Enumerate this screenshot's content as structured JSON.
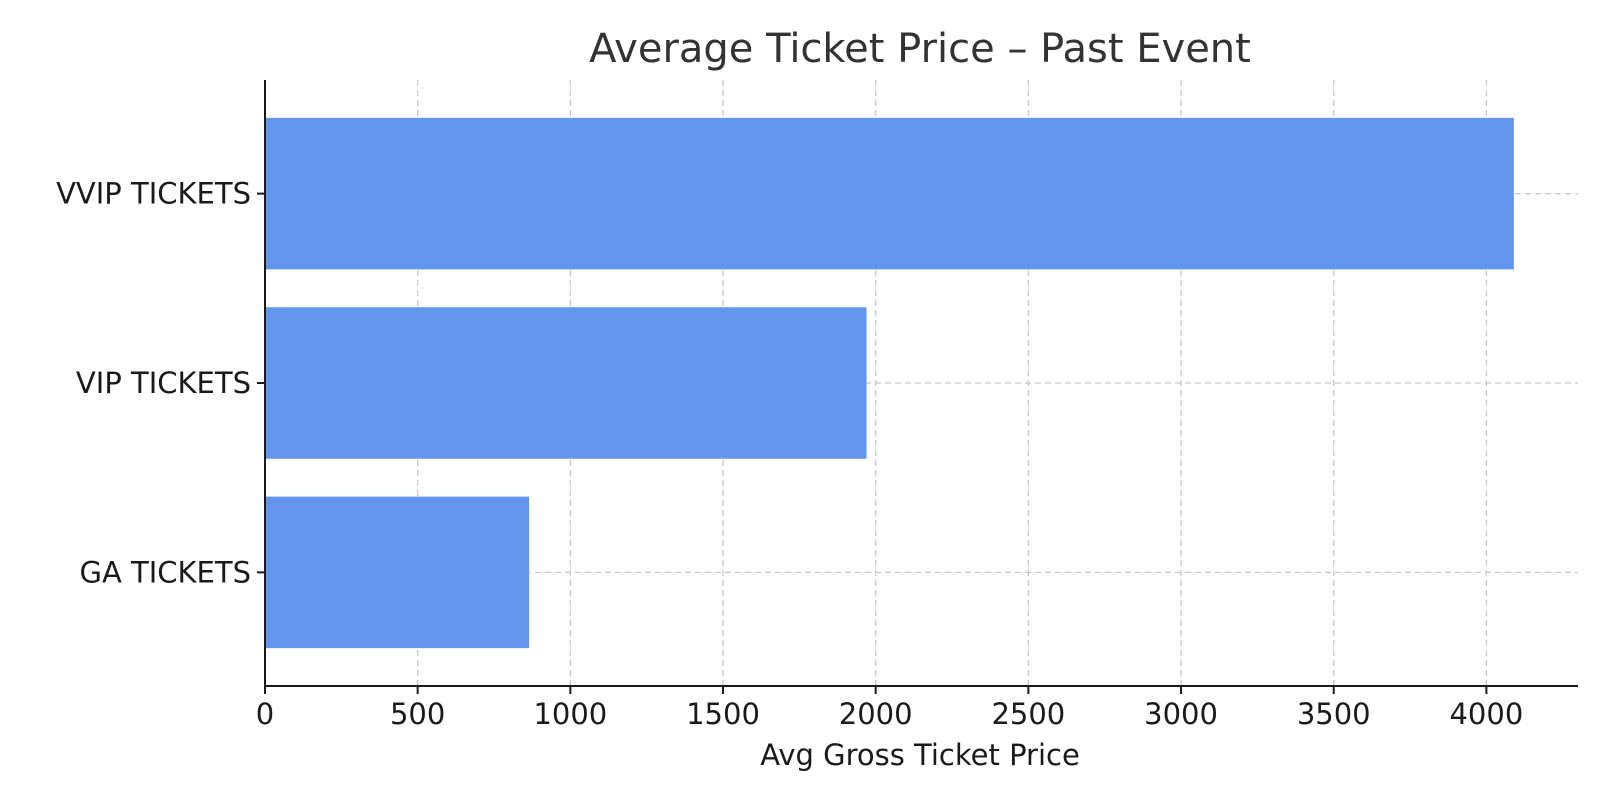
{
  "chart_data": {
    "type": "bar",
    "orientation": "horizontal",
    "title": "Average Ticket Price – Past Event",
    "xlabel": "Avg Gross Ticket Price",
    "ylabel": "",
    "categories": [
      "GA TICKETS",
      "VIP TICKETS",
      "VVIP TICKETS"
    ],
    "values": [
      865,
      1970,
      4090
    ],
    "xlim": [
      0,
      4300
    ],
    "xticks": [
      0,
      500,
      1000,
      1500,
      2000,
      2500,
      3000,
      3500,
      4000
    ],
    "grid": true,
    "bar_color": "#6495ED",
    "legend": "none"
  }
}
